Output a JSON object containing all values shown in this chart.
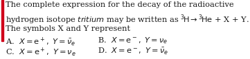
{
  "background_color": "#ffffff",
  "bar_color": "#d0021b",
  "fontsize": 8.2,
  "text_color": "#1a1a1a"
}
